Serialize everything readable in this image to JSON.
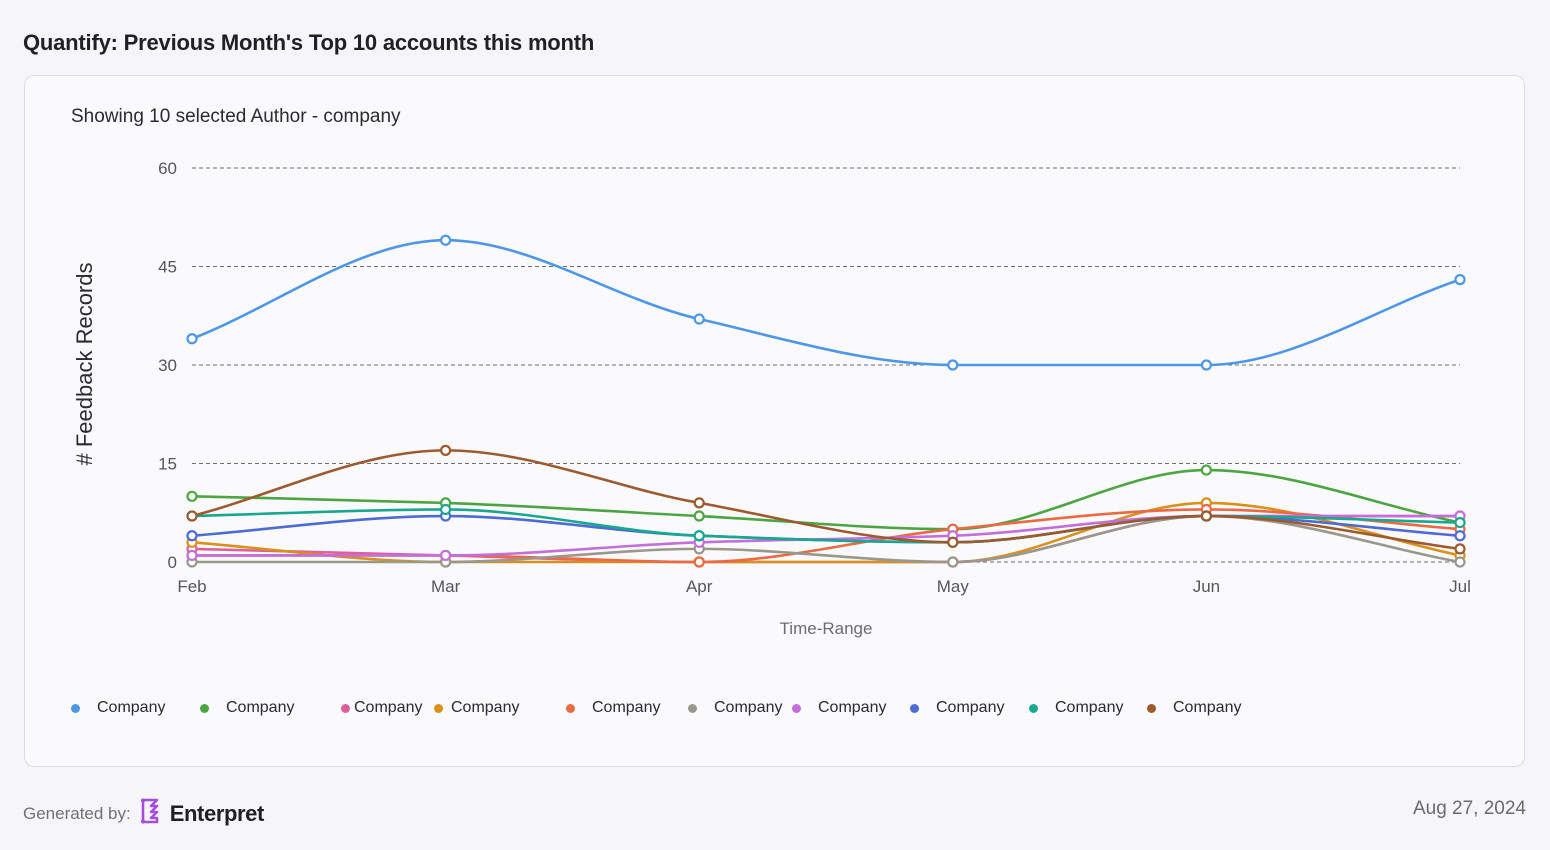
{
  "page": {
    "title": "Quantify: Previous Month's Top 10 accounts this month",
    "generated_by_label": "Generated by:",
    "brand_name": "Enterpret",
    "date": "Aug 27, 2024"
  },
  "card": {
    "subtitle": "Showing 10 selected Author - company"
  },
  "chart_data": {
    "type": "line",
    "title": "",
    "xlabel": "Time-Range",
    "ylabel": "# Feedback Records",
    "categories": [
      "Feb",
      "Mar",
      "Apr",
      "May",
      "Jun",
      "Jul"
    ],
    "ylim": [
      0,
      60
    ],
    "yticks": [
      0,
      15,
      30,
      45,
      60
    ],
    "grid": true,
    "legend_position": "bottom",
    "series": [
      {
        "name": "Company",
        "color": "#4e97e6",
        "values": [
          34,
          49,
          37,
          30,
          30,
          43
        ]
      },
      {
        "name": "Company",
        "color": "#4ca543",
        "values": [
          10,
          9,
          7,
          5,
          14,
          6
        ]
      },
      {
        "name": "Company",
        "color": "#df5f9e",
        "values": [
          2,
          1,
          0,
          0,
          7,
          7
        ]
      },
      {
        "name": "Company",
        "color": "#d9901c",
        "values": [
          3,
          0,
          0,
          0,
          9,
          1
        ]
      },
      {
        "name": "Company",
        "color": "#ea6a43",
        "values": [
          1,
          1,
          0,
          5,
          8,
          5
        ]
      },
      {
        "name": "Company",
        "color": "#9a978d",
        "values": [
          0,
          0,
          2,
          0,
          7,
          0
        ]
      },
      {
        "name": "Company",
        "color": "#c36fdb",
        "values": [
          1,
          1,
          3,
          4,
          7,
          7
        ]
      },
      {
        "name": "Company",
        "color": "#4d6bd3",
        "values": [
          4,
          7,
          4,
          3,
          7,
          4
        ]
      },
      {
        "name": "Company",
        "color": "#19a88f",
        "values": [
          7,
          8,
          4,
          3,
          7,
          6
        ]
      },
      {
        "name": "Company",
        "color": "#9d5a2f",
        "values": [
          7,
          17,
          9,
          3,
          7,
          2
        ]
      }
    ]
  }
}
